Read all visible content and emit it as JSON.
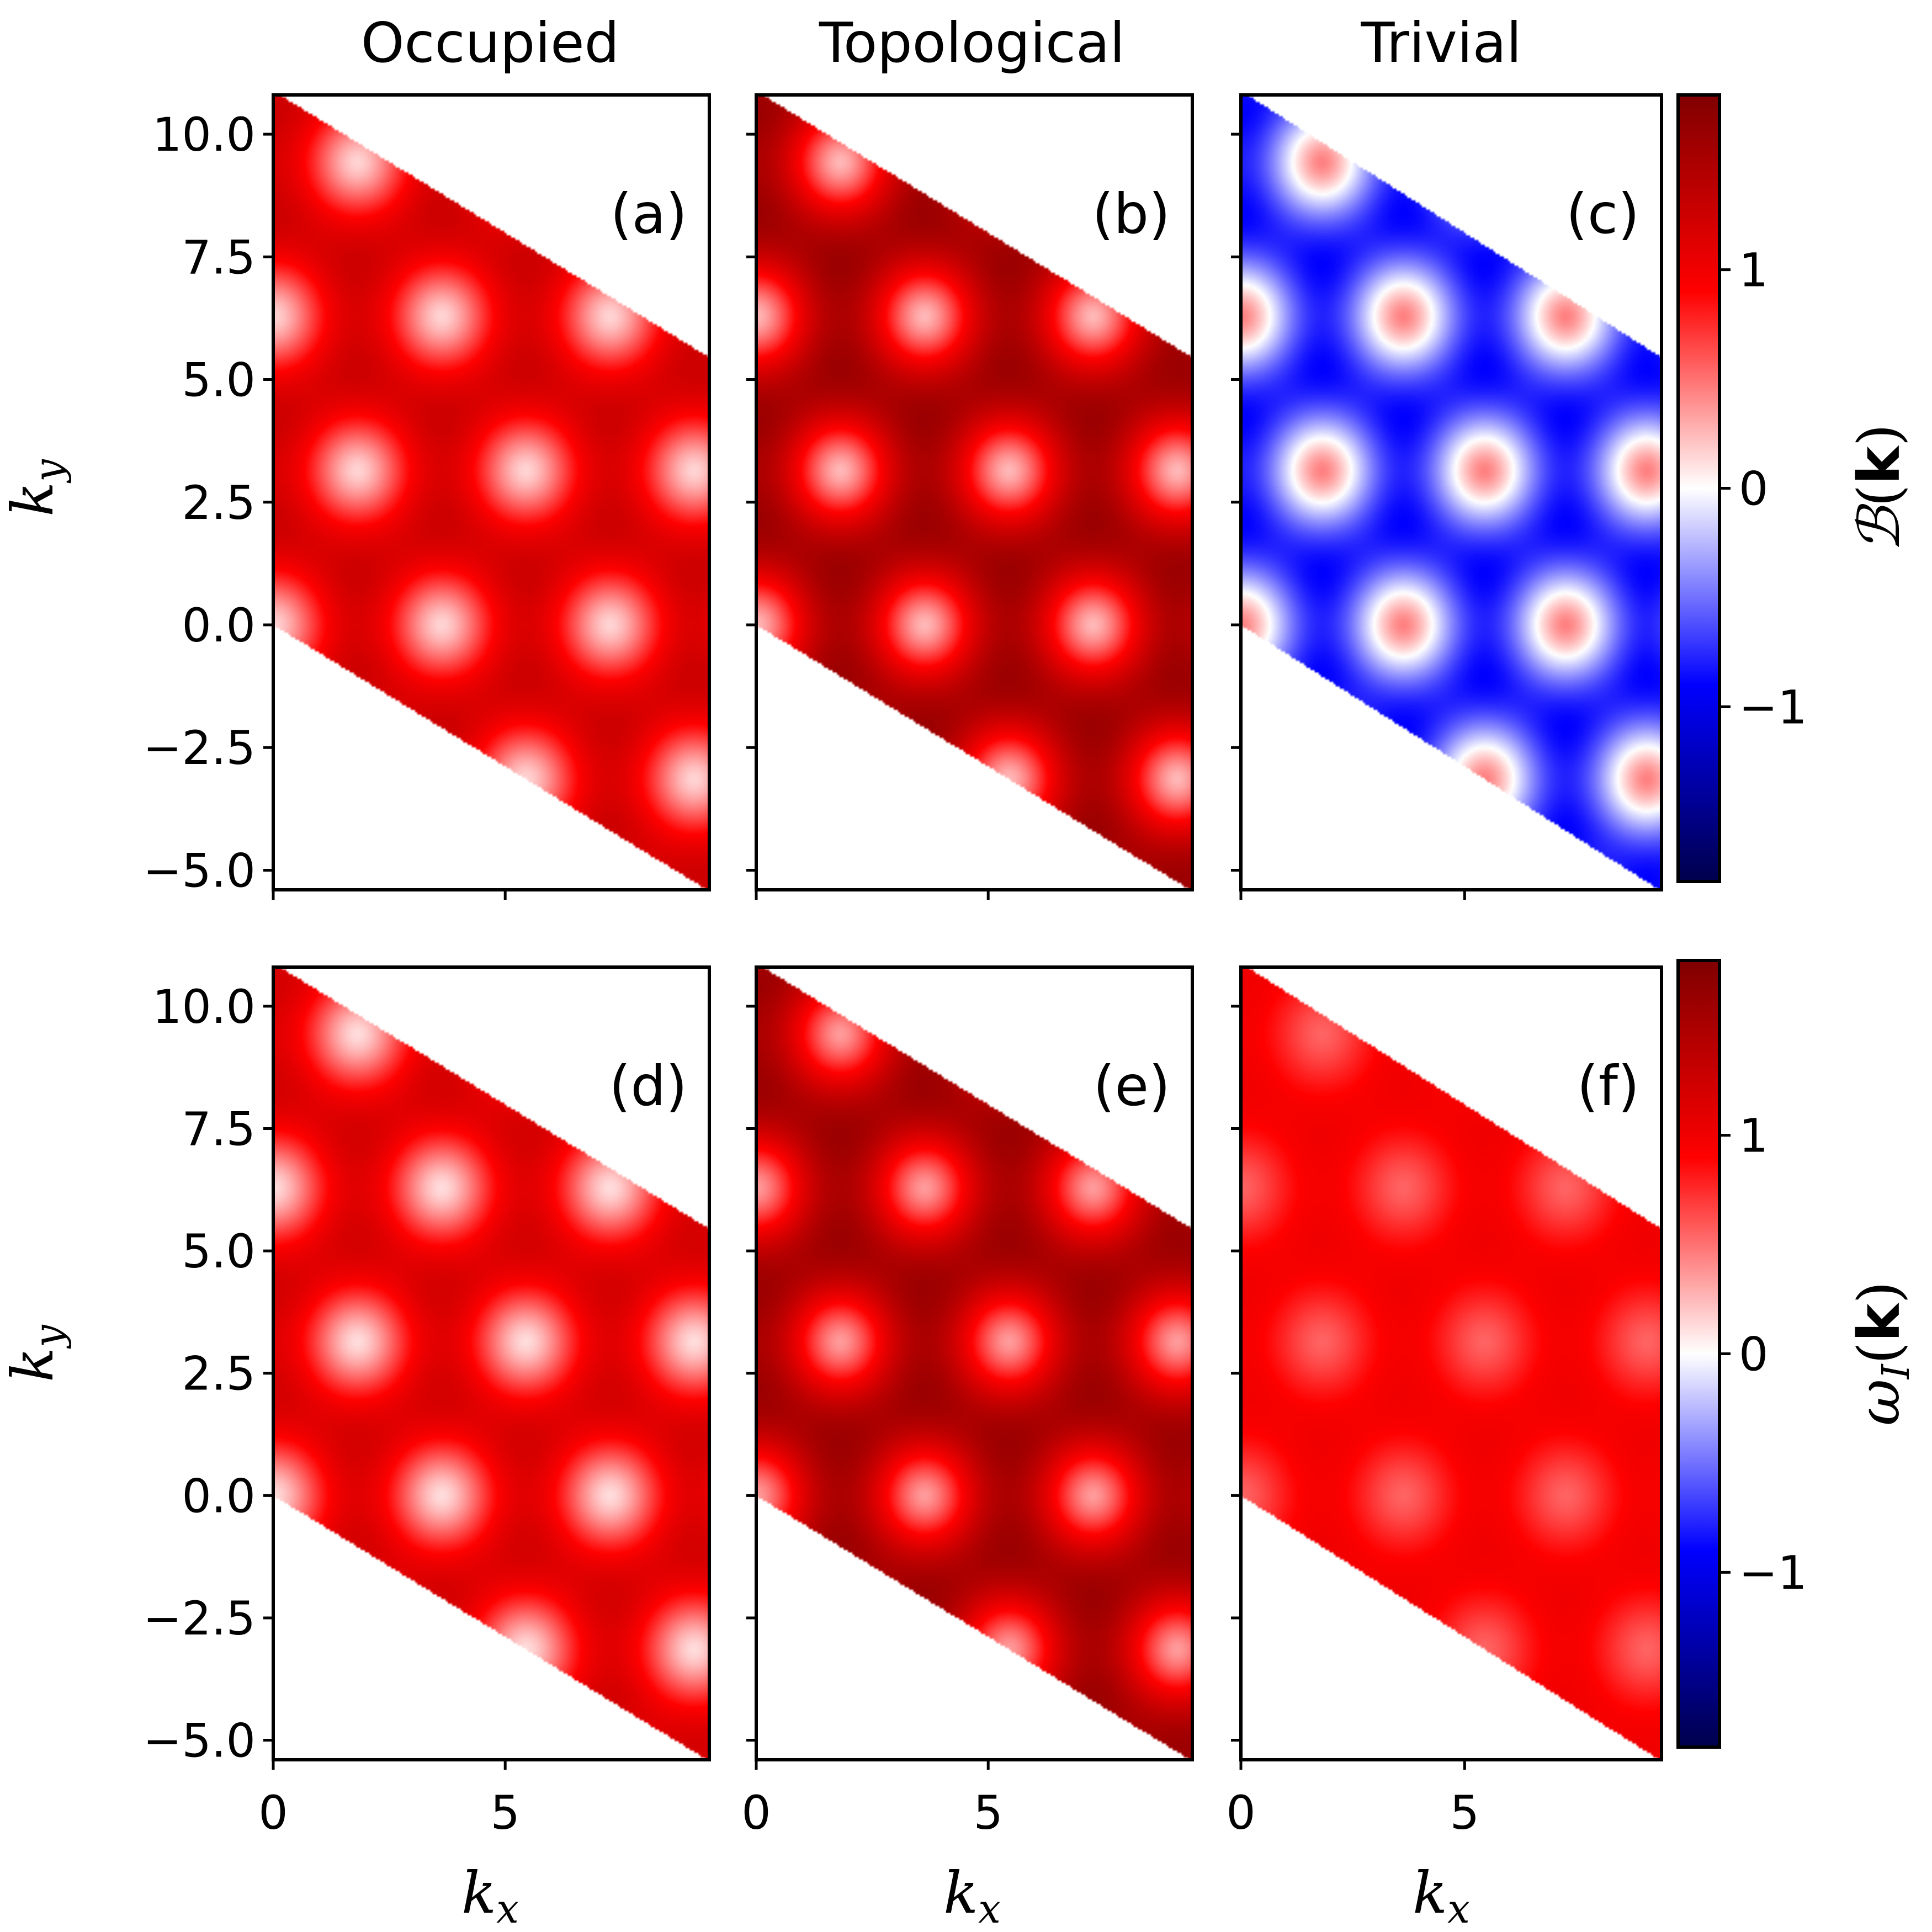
{
  "columns": [
    "Occupied",
    "Topological",
    "Trivial"
  ],
  "rows": [
    {
      "colorbar_label": "ℬ(k)",
      "panels": [
        "(a)",
        "(b)",
        "(c)"
      ]
    },
    {
      "colorbar_label": "ωI(k)",
      "panels": [
        "(d)",
        "(e)",
        "(f)"
      ]
    }
  ],
  "colors": {
    "colormap": "seismic",
    "low": "#00004c",
    "blue": "#0000ff",
    "mid": "#ffffff",
    "red": "#ff0000",
    "high": "#800000"
  },
  "chart_data": {
    "type": "heatmap",
    "xlabel": "kx",
    "ylabel": "ky",
    "xlim": [
      0,
      9.4
    ],
    "ylim": [
      -5.4,
      10.8
    ],
    "x_ticks": [
      0,
      5
    ],
    "x_tick_labels": [
      "0",
      "5"
    ],
    "y_ticks": [
      10.0,
      7.5,
      5.0,
      2.5,
      0.0,
      -2.5,
      -5.0
    ],
    "y_tick_labels": [
      "10.0",
      "7.5",
      "5.0",
      "2.5",
      "0.0",
      "−2.5",
      "−5.0"
    ],
    "domain": "Brillouin zone parallelogram with vertices (0, 0), (0, 10.88), (9.42, 5.44), (9.42, -5.44)",
    "colorbar": {
      "range": [
        -1.8,
        1.8
      ],
      "ticks": [
        1,
        0,
        -1
      ],
      "tick_labels": [
        "1",
        "0",
        "−1"
      ]
    },
    "panels": [
      {
        "label": "(a)",
        "column": "Occupied",
        "quantity": "ℬ(k)",
        "value_at_hexagon_centers": 0.15,
        "value_at_K_points": 1.25
      },
      {
        "label": "(b)",
        "column": "Topological",
        "quantity": "ℬ(k)",
        "value_at_hexagon_centers": 0.25,
        "value_at_K_points": 1.6
      },
      {
        "label": "(c)",
        "column": "Trivial",
        "quantity": "ℬ(k)",
        "value_at_hexagon_centers": 0.45,
        "value_at_K_points": -0.9
      },
      {
        "label": "(d)",
        "column": "Occupied",
        "quantity": "ωI(k)",
        "value_at_hexagon_centers": 0.12,
        "value_at_K_points": 1.2
      },
      {
        "label": "(e)",
        "column": "Topological",
        "quantity": "ωI(k)",
        "value_at_hexagon_centers": 0.35,
        "value_at_K_points": 1.6
      },
      {
        "label": "(f)",
        "column": "Trivial",
        "quantity": "ωI(k)",
        "value_at_hexagon_centers": 0.55,
        "value_at_K_points": 1.0
      }
    ]
  }
}
